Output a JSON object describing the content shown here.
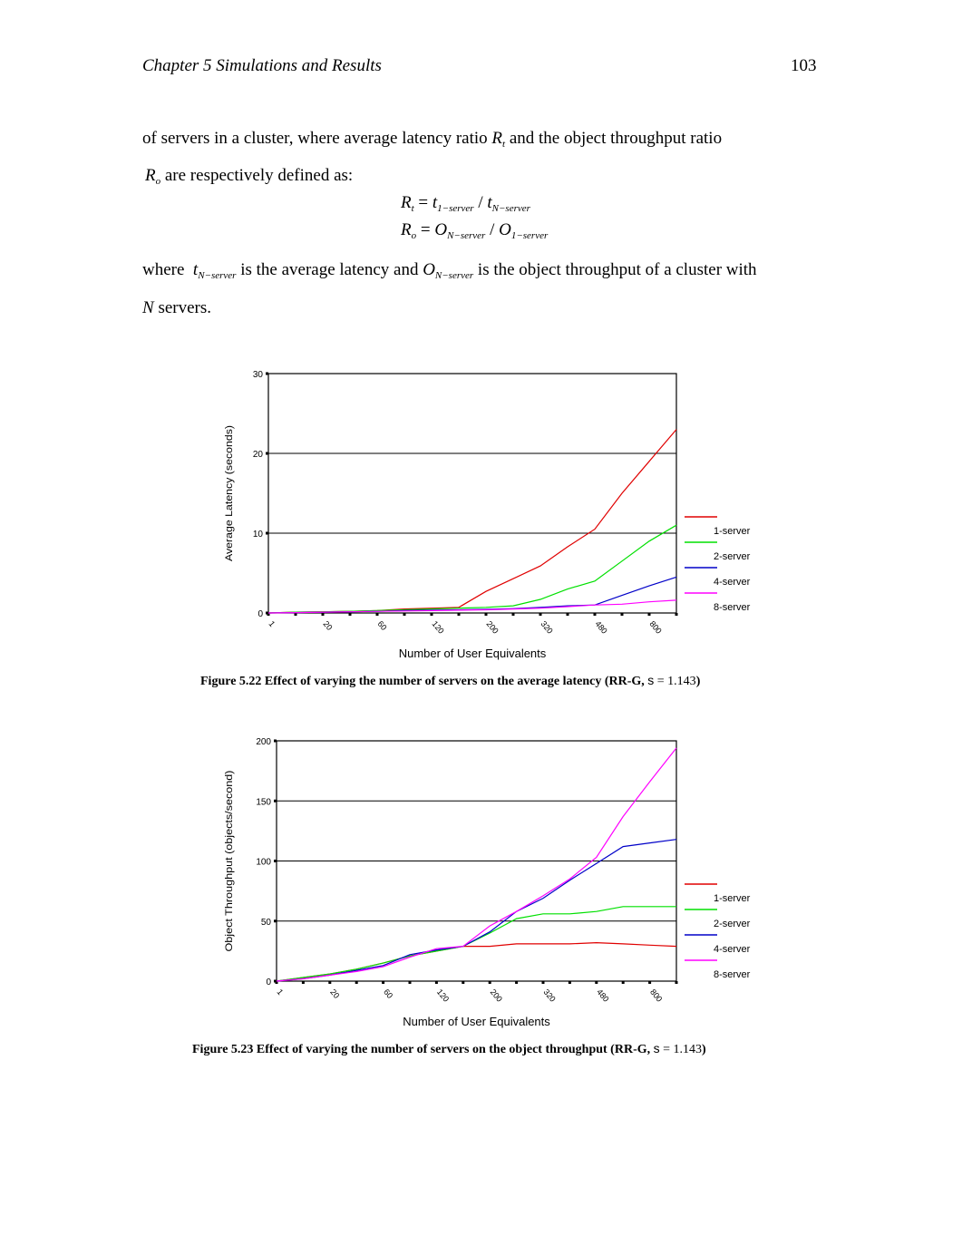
{
  "header": {
    "chapter": "Chapter 5 Simulations and Results",
    "page_number": "103"
  },
  "body": {
    "para1_a": "of servers in a cluster, where average latency ratio",
    "para1_sym": "R",
    "para1_sub": "t",
    "para1_b": "and the object throughput ratio",
    "para2_sym": "R",
    "para2_sub": "o",
    "para2_text": "are respectively defined as:",
    "eq1": {
      "lhs": "R",
      "lhs_sub": "t",
      "t1": "t",
      "t1_sub": "1−server",
      "t2": "t",
      "t2_sub": "N−server"
    },
    "eq2": {
      "lhs": "R",
      "lhs_sub": "o",
      "t1": "O",
      "t1_sub": "N−server",
      "t2": "O",
      "t2_sub": "1−server"
    },
    "where_a": "where",
    "where_sym1": "t",
    "where_sym1_sub": "N−server",
    "where_b": "is the average latency and",
    "where_sym2": "O",
    "where_sym2_sub": "N−server",
    "where_c": "is the object throughput of a cluster with",
    "last_sym": "N",
    "last_text": "servers."
  },
  "figure1": {
    "caption": "Figure 5.22 Effect of varying the number of servers on the average latency (RR-G,",
    "sigma": "s",
    "value": "= 1.143",
    "close": ")"
  },
  "figure2": {
    "caption": "Figure 5.23 Effect of varying the number of servers on the object throughput (RR-G,",
    "sigma": "s",
    "value": "= 1.143",
    "close": ")"
  },
  "chart_data": [
    {
      "type": "line",
      "xlabel": "Number of User Equivalents",
      "ylabel": "Average Latency (seconds)",
      "ylim": [
        0,
        30
      ],
      "yticks": [
        "0",
        "10",
        "20",
        "30"
      ],
      "x_tick_labels": [
        "1",
        "20",
        "60",
        "120",
        "200",
        "320",
        "480",
        "800"
      ],
      "grid": true,
      "legend_position": "right",
      "n_points": 16,
      "series": [
        {
          "name": "1-server",
          "color": "#e00000",
          "values": [
            0,
            0.1,
            0.15,
            0.2,
            0.3,
            0.5,
            0.6,
            0.7,
            2.7,
            4.3,
            5.9,
            8.3,
            10.5,
            15.0,
            19.0,
            23.0
          ]
        },
        {
          "name": "2-server",
          "color": "#00e000",
          "values": [
            0,
            0.1,
            0.15,
            0.2,
            0.3,
            0.4,
            0.5,
            0.6,
            0.7,
            0.9,
            1.7,
            3.0,
            4.0,
            6.5,
            9.0,
            11.0
          ]
        },
        {
          "name": "4-server",
          "color": "#0000c8",
          "values": [
            0,
            0.05,
            0.1,
            0.15,
            0.2,
            0.3,
            0.35,
            0.4,
            0.45,
            0.55,
            0.7,
            0.9,
            1.0,
            2.2,
            3.4,
            4.5
          ]
        },
        {
          "name": "8-server",
          "color": "#ff00ff",
          "values": [
            0,
            0.05,
            0.1,
            0.15,
            0.2,
            0.25,
            0.3,
            0.35,
            0.4,
            0.5,
            0.6,
            0.8,
            1.0,
            1.1,
            1.4,
            1.6
          ]
        }
      ]
    },
    {
      "type": "line",
      "xlabel": "Number of User Equivalents",
      "ylabel": "Object Throughput (objects/second)",
      "ylim": [
        0,
        200
      ],
      "yticks": [
        "0",
        "50",
        "100",
        "150",
        "200"
      ],
      "x_tick_labels": [
        "1",
        "20",
        "60",
        "120",
        "200",
        "320",
        "480",
        "800"
      ],
      "grid": true,
      "legend_position": "right",
      "n_points": 16,
      "series": [
        {
          "name": "1-server",
          "color": "#e00000",
          "values": [
            0,
            3,
            6,
            10,
            15,
            21,
            25,
            29,
            29,
            31,
            31,
            31,
            32,
            31,
            30,
            29
          ]
        },
        {
          "name": "2-server",
          "color": "#00e000",
          "values": [
            0,
            3,
            6,
            10,
            15,
            21,
            25,
            29,
            40,
            52,
            56,
            56,
            58,
            62,
            62,
            62
          ]
        },
        {
          "name": "4-server",
          "color": "#0000c8",
          "values": [
            0,
            2,
            5,
            9,
            13,
            22,
            26,
            29,
            41,
            58,
            69,
            84,
            98,
            112,
            115,
            118
          ]
        },
        {
          "name": "8-server",
          "color": "#ff00ff",
          "values": [
            0,
            2,
            5,
            8,
            12,
            20,
            27,
            29,
            46,
            58,
            71,
            85,
            103,
            137,
            166,
            194
          ]
        }
      ]
    }
  ]
}
